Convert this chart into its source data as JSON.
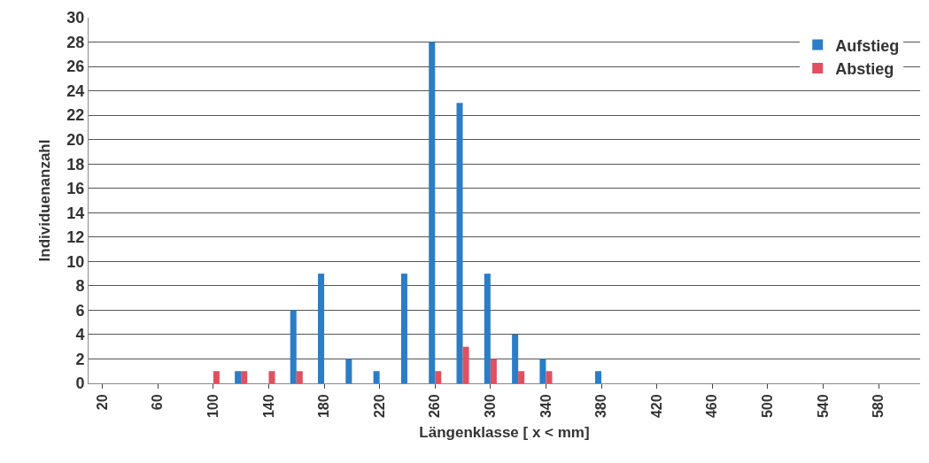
{
  "chart_data": {
    "type": "bar",
    "xlabel": "Längenklasse [ x < mm]",
    "ylabel": "Individuenanzahl",
    "categories": [
      "20",
      null,
      "60",
      null,
      "100",
      null,
      "140",
      null,
      "180",
      null,
      "220",
      null,
      "260",
      null,
      "300",
      null,
      "340",
      null,
      "380",
      null,
      "420",
      null,
      "460",
      null,
      "500",
      null,
      "540",
      null,
      "580",
      null
    ],
    "series": [
      {
        "name": "Aufstieg",
        "color": "#2a7dc6",
        "values": [
          0,
          0,
          0,
          0,
          0,
          1,
          0,
          6,
          9,
          2,
          1,
          9,
          28,
          23,
          9,
          4,
          2,
          0,
          1,
          0,
          0,
          0,
          0,
          0,
          0,
          0,
          0,
          0,
          0,
          0
        ]
      },
      {
        "name": "Abstieg",
        "color": "#e0505f",
        "values": [
          0,
          0,
          0,
          0,
          1,
          1,
          1,
          1,
          0,
          0,
          0,
          0,
          1,
          3,
          2,
          1,
          1,
          0,
          0,
          0,
          0,
          0,
          0,
          0,
          0,
          0,
          0,
          0,
          0,
          0
        ]
      }
    ],
    "ylim": [
      0,
      30
    ],
    "yticks": [
      0,
      2,
      4,
      6,
      8,
      10,
      12,
      14,
      16,
      18,
      20,
      22,
      24,
      26,
      28,
      30
    ],
    "grid": "y",
    "legend": "top right"
  }
}
